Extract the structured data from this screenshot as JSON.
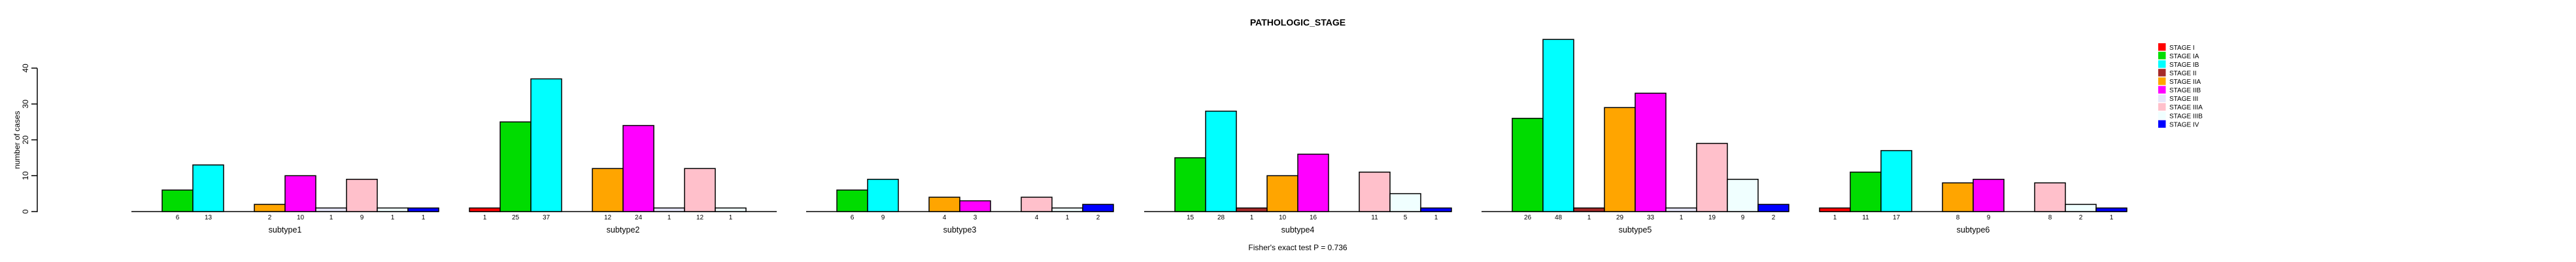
{
  "title": "PATHOLOGIC_STAGE",
  "footer": {
    "text": "Fisher's exact test P = 0.736"
  },
  "chart_data": {
    "type": "bar",
    "title": "PATHOLOGIC_STAGE",
    "xlabel": "",
    "ylabel": "number of cases",
    "ylim": [
      0,
      40
    ],
    "yticks": [
      0,
      10,
      20,
      30,
      40
    ],
    "grid": false,
    "legend_position": "right",
    "bar_value_labels": "shown under each nonzero bar",
    "annotation": "Fisher's exact test P = 0.736",
    "categories": [
      "subtype1",
      "subtype2",
      "subtype3",
      "subtype4",
      "subtype5",
      "subtype6"
    ],
    "series": [
      {
        "name": "STAGE I",
        "color": "#FF0000",
        "values": [
          0,
          1,
          0,
          0,
          0,
          1
        ]
      },
      {
        "name": "STAGE IA",
        "color": "#00DC00",
        "values": [
          6,
          25,
          6,
          15,
          26,
          11
        ]
      },
      {
        "name": "STAGE IB",
        "color": "#00FFFF",
        "values": [
          13,
          37,
          9,
          28,
          48,
          17
        ]
      },
      {
        "name": "STAGE II",
        "color": "#A52A2A",
        "values": [
          0,
          0,
          0,
          1,
          1,
          0
        ]
      },
      {
        "name": "STAGE IIA",
        "color": "#FFA500",
        "values": [
          2,
          12,
          4,
          10,
          29,
          8
        ]
      },
      {
        "name": "STAGE IIB",
        "color": "#FF00FF",
        "values": [
          10,
          24,
          3,
          16,
          33,
          9
        ]
      },
      {
        "name": "STAGE III",
        "color": "#E6E6FA",
        "values": [
          1,
          1,
          0,
          0,
          1,
          0
        ]
      },
      {
        "name": "STAGE IIIA",
        "color": "#FFC0CB",
        "values": [
          9,
          12,
          4,
          11,
          19,
          8
        ]
      },
      {
        "name": "STAGE IIIB",
        "color": "#F0FFFF",
        "values": [
          1,
          1,
          1,
          5,
          9,
          2
        ]
      },
      {
        "name": "STAGE IV",
        "color": "#0000FF",
        "values": [
          1,
          0,
          2,
          1,
          2,
          1
        ]
      }
    ]
  }
}
